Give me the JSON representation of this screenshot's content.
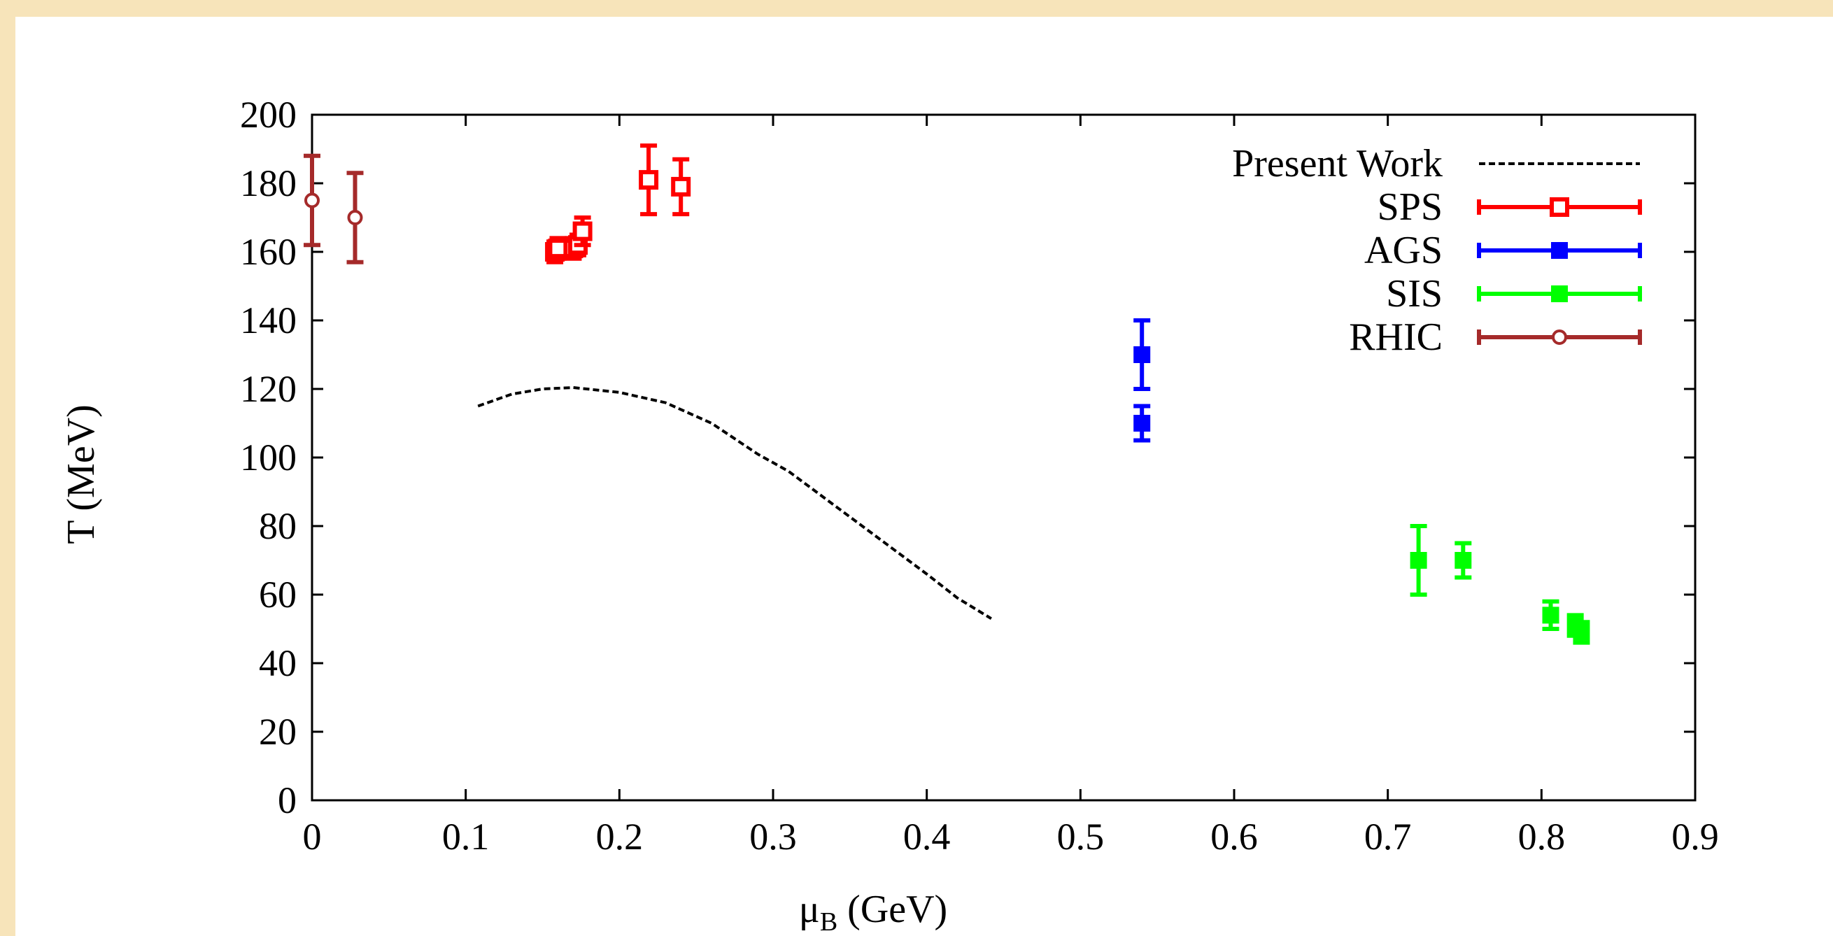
{
  "chart_data": {
    "type": "scatter",
    "title": "",
    "xlabel": "μ",
    "xlabel_sub": "B",
    "xlabel_unit": " (GeV)",
    "ylabel": "T (MeV)",
    "xlim": [
      0,
      0.9
    ],
    "ylim": [
      0,
      200
    ],
    "x_ticks": [
      0,
      0.1,
      0.2,
      0.3,
      0.4,
      0.5,
      0.6,
      0.7,
      0.8,
      0.9
    ],
    "x_tick_labels": [
      "0",
      "0.1",
      "0.2",
      "0.3",
      "0.4",
      "0.5",
      "0.6",
      "0.7",
      "0.8",
      "0.9"
    ],
    "y_ticks": [
      0,
      20,
      40,
      60,
      80,
      100,
      120,
      140,
      160,
      180,
      200
    ],
    "y_tick_labels": [
      "0",
      "20",
      "40",
      "60",
      "80",
      "100",
      "120",
      "140",
      "160",
      "180",
      "200"
    ],
    "grid": false,
    "legend_position": "top-right",
    "series": [
      {
        "name": "Present Work",
        "type": "line",
        "style": "dashed",
        "color": "#000000",
        "points": [
          [
            0.108,
            115
          ],
          [
            0.13,
            118.5
          ],
          [
            0.15,
            120
          ],
          [
            0.17,
            120.4
          ],
          [
            0.2,
            119
          ],
          [
            0.23,
            116
          ],
          [
            0.26,
            110
          ],
          [
            0.29,
            101
          ],
          [
            0.31,
            96
          ],
          [
            0.34,
            86
          ],
          [
            0.37,
            76
          ],
          [
            0.4,
            66
          ],
          [
            0.42,
            59
          ],
          [
            0.442,
            53
          ]
        ]
      },
      {
        "name": "SPS",
        "type": "errorbar",
        "marker": "square-open",
        "color": "#ff0000",
        "points": [
          {
            "x": 0.158,
            "y": 160,
            "err": 3
          },
          {
            "x": 0.16,
            "y": 161,
            "err": 3
          },
          {
            "x": 0.17,
            "y": 161,
            "err": 3
          },
          {
            "x": 0.173,
            "y": 162,
            "err": 3
          },
          {
            "x": 0.176,
            "y": 166,
            "err": 4
          },
          {
            "x": 0.219,
            "y": 181,
            "err": 10
          },
          {
            "x": 0.24,
            "y": 179,
            "err": 8
          }
        ]
      },
      {
        "name": "AGS",
        "type": "errorbar",
        "marker": "square",
        "color": "#0000ff",
        "points": [
          {
            "x": 0.54,
            "y": 130,
            "err": 10
          },
          {
            "x": 0.54,
            "y": 110,
            "err": 5
          }
        ]
      },
      {
        "name": "SIS",
        "type": "errorbar",
        "marker": "square",
        "color": "#00ff00",
        "points": [
          {
            "x": 0.72,
            "y": 70,
            "err": 10
          },
          {
            "x": 0.749,
            "y": 70,
            "err": 5
          },
          {
            "x": 0.806,
            "y": 54,
            "err": 4
          },
          {
            "x": 0.822,
            "y": 51,
            "err": 3
          },
          {
            "x": 0.826,
            "y": 49,
            "err": 3
          }
        ]
      },
      {
        "name": "RHIC",
        "type": "errorbar",
        "marker": "circle-open",
        "color": "#a52a2a",
        "points": [
          {
            "x": 0,
            "y": 175,
            "err": 13
          },
          {
            "x": 0.028,
            "y": 170,
            "err": 13
          }
        ]
      }
    ]
  }
}
